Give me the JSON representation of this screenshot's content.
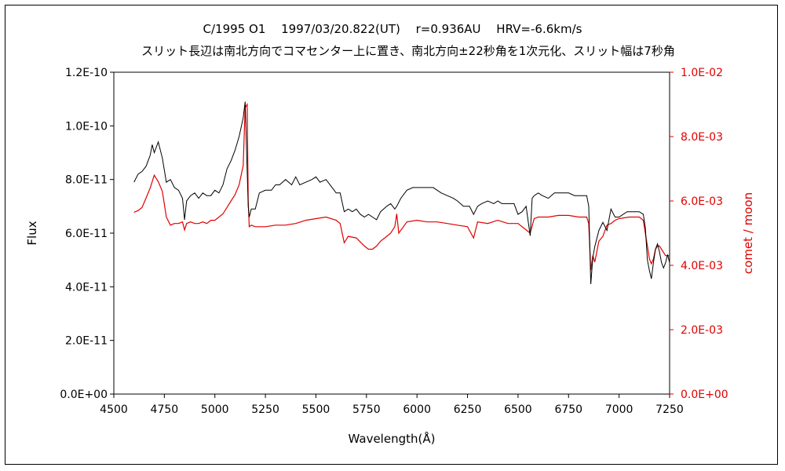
{
  "chart_data": {
    "type": "line",
    "title": "C/1995 O1　 1997/03/20.822(UT)　 r=0.936AU　 HRV=-6.6km/s",
    "subtitle": "スリット長辺は南北方向でコマセンター上に置き、南北方向±22秒角を1次元化、スリット幅は7秒角",
    "xlabel": "Wavelength(Å)",
    "ylabel": "Flux",
    "y2label": "comet / moon",
    "xlim": [
      4500,
      7250
    ],
    "ylim": [
      0,
      1.2e-10
    ],
    "y2lim": [
      0,
      0.01
    ],
    "x_ticks": [
      "4500",
      "4750",
      "5000",
      "5250",
      "5500",
      "5750",
      "6000",
      "6250",
      "6500",
      "6750",
      "7000",
      "7250"
    ],
    "y_ticks": [
      "0.0E+00",
      "2.0E-11",
      "4.0E-11",
      "6.0E-11",
      "8.0E-11",
      "1.0E-10",
      "1.2E-10"
    ],
    "y2_ticks": [
      "0.0E+00",
      "2.0E-03",
      "4.0E-03",
      "6.0E-03",
      "8.0E-03",
      "1.0E-02"
    ],
    "grid": false,
    "colors": {
      "flux": "#000000",
      "ratio": "#e00000",
      "axis_right": "#e00000"
    },
    "series": [
      {
        "axis": "left",
        "x": [
          4600,
          4620,
          4640,
          4660,
          4680,
          4690,
          4700,
          4720,
          4740,
          4760,
          4780,
          4800,
          4820,
          4840,
          4850,
          4860,
          4880,
          4900,
          4920,
          4940,
          4960,
          4980,
          5000,
          5020,
          5040,
          5060,
          5080,
          5100,
          5120,
          5140,
          5150,
          5160,
          5165,
          5170,
          5180,
          5200,
          5220,
          5250,
          5280,
          5300,
          5320,
          5350,
          5380,
          5400,
          5420,
          5450,
          5480,
          5500,
          5520,
          5550,
          5580,
          5600,
          5620,
          5640,
          5660,
          5680,
          5700,
          5720,
          5740,
          5760,
          5780,
          5800,
          5820,
          5850,
          5870,
          5890,
          5900,
          5920,
          5950,
          5980,
          6000,
          6020,
          6050,
          6080,
          6100,
          6120,
          6150,
          6180,
          6200,
          6230,
          6260,
          6280,
          6300,
          6320,
          6350,
          6380,
          6400,
          6420,
          6450,
          6480,
          6500,
          6520,
          6540,
          6560,
          6570,
          6580,
          6600,
          6620,
          6650,
          6680,
          6700,
          6720,
          6750,
          6780,
          6800,
          6820,
          6840,
          6850,
          6860,
          6870,
          6880,
          6900,
          6920,
          6940,
          6960,
          6980,
          7000,
          7020,
          7040,
          7060,
          7080,
          7100,
          7120,
          7130,
          7140,
          7150,
          7160,
          7170,
          7180,
          7190,
          7200,
          7210,
          7220,
          7230,
          7240,
          7250
        ],
        "y": [
          7.9e-11,
          8.2e-11,
          8.3e-11,
          8.5e-11,
          8.9e-11,
          9.3e-11,
          9e-11,
          9.4e-11,
          8.8e-11,
          7.9e-11,
          8e-11,
          7.7e-11,
          7.6e-11,
          7.3e-11,
          6.5e-11,
          7.2e-11,
          7.4e-11,
          7.5e-11,
          7.3e-11,
          7.5e-11,
          7.4e-11,
          7.4e-11,
          7.6e-11,
          7.5e-11,
          7.8e-11,
          8.4e-11,
          8.7e-11,
          9.1e-11,
          9.6e-11,
          1.03e-10,
          1.09e-10,
          8.3e-11,
          7e-11,
          6.6e-11,
          6.9e-11,
          6.9e-11,
          7.5e-11,
          7.6e-11,
          7.6e-11,
          7.8e-11,
          7.8e-11,
          8e-11,
          7.8e-11,
          8.1e-11,
          7.8e-11,
          7.9e-11,
          8e-11,
          8.1e-11,
          7.9e-11,
          8e-11,
          7.7e-11,
          7.5e-11,
          7.5e-11,
          6.8e-11,
          6.9e-11,
          6.8e-11,
          6.9e-11,
          6.7e-11,
          6.6e-11,
          6.7e-11,
          6.6e-11,
          6.5e-11,
          6.8e-11,
          7e-11,
          7.1e-11,
          6.9e-11,
          7e-11,
          7.3e-11,
          7.6e-11,
          7.7e-11,
          7.7e-11,
          7.7e-11,
          7.7e-11,
          7.7e-11,
          7.6e-11,
          7.5e-11,
          7.4e-11,
          7.3e-11,
          7.2e-11,
          7e-11,
          7e-11,
          6.7e-11,
          7e-11,
          7.1e-11,
          7.2e-11,
          7.1e-11,
          7.2e-11,
          7.1e-11,
          7.1e-11,
          7.1e-11,
          6.7e-11,
          6.8e-11,
          7e-11,
          5.9e-11,
          7.3e-11,
          7.4e-11,
          7.5e-11,
          7.4e-11,
          7.3e-11,
          7.5e-11,
          7.5e-11,
          7.5e-11,
          7.5e-11,
          7.4e-11,
          7.4e-11,
          7.4e-11,
          7.4e-11,
          7e-11,
          4.1e-11,
          5.1e-11,
          5.5e-11,
          6.1e-11,
          6.4e-11,
          6.1e-11,
          6.9e-11,
          6.6e-11,
          6.6e-11,
          6.7e-11,
          6.8e-11,
          6.8e-11,
          6.8e-11,
          6.8e-11,
          6.7e-11,
          6.2e-11,
          5e-11,
          4.6e-11,
          4.3e-11,
          4.9e-11,
          5.4e-11,
          5.6e-11,
          5.3e-11,
          4.9e-11,
          4.7e-11,
          4.9e-11,
          5.2e-11,
          4.9e-11
        ]
      },
      {
        "axis": "right",
        "x": [
          4600,
          4620,
          4640,
          4660,
          4680,
          4700,
          4720,
          4740,
          4760,
          4780,
          4800,
          4820,
          4840,
          4850,
          4860,
          4880,
          4900,
          4920,
          4940,
          4960,
          4980,
          5000,
          5020,
          5040,
          5060,
          5080,
          5100,
          5120,
          5140,
          5150,
          5160,
          5165,
          5170,
          5180,
          5200,
          5250,
          5300,
          5350,
          5400,
          5450,
          5500,
          5550,
          5600,
          5620,
          5640,
          5660,
          5700,
          5740,
          5760,
          5780,
          5800,
          5820,
          5850,
          5870,
          5890,
          5900,
          5910,
          5950,
          6000,
          6050,
          6100,
          6150,
          6200,
          6250,
          6280,
          6300,
          6350,
          6400,
          6450,
          6500,
          6540,
          6560,
          6580,
          6600,
          6650,
          6700,
          6750,
          6800,
          6840,
          6850,
          6860,
          6870,
          6880,
          6900,
          6920,
          6940,
          6960,
          6980,
          7000,
          7050,
          7100,
          7120,
          7140,
          7150,
          7160,
          7170,
          7180,
          7190,
          7200,
          7210,
          7220,
          7230,
          7250
        ],
        "y": [
          0.00565,
          0.0057,
          0.0058,
          0.0061,
          0.0064,
          0.0068,
          0.0066,
          0.0063,
          0.0055,
          0.00525,
          0.0053,
          0.0053,
          0.00535,
          0.0051,
          0.0053,
          0.00535,
          0.0053,
          0.0053,
          0.00535,
          0.0053,
          0.0054,
          0.0054,
          0.0055,
          0.0056,
          0.0058,
          0.006,
          0.0062,
          0.0065,
          0.0071,
          0.0089,
          0.009,
          0.006,
          0.0052,
          0.00525,
          0.0052,
          0.0052,
          0.00525,
          0.00525,
          0.0053,
          0.0054,
          0.00545,
          0.0055,
          0.0054,
          0.0053,
          0.0047,
          0.0049,
          0.00485,
          0.0046,
          0.0045,
          0.0045,
          0.0046,
          0.00475,
          0.0049,
          0.005,
          0.0052,
          0.0056,
          0.005,
          0.00535,
          0.0054,
          0.00535,
          0.00535,
          0.0053,
          0.00525,
          0.0052,
          0.00485,
          0.00535,
          0.0053,
          0.0054,
          0.0053,
          0.0053,
          0.0051,
          0.005,
          0.00545,
          0.0055,
          0.0055,
          0.00555,
          0.00555,
          0.0055,
          0.0055,
          0.0053,
          0.00385,
          0.0043,
          0.0041,
          0.00475,
          0.0049,
          0.00525,
          0.0053,
          0.0054,
          0.00545,
          0.0055,
          0.0055,
          0.0054,
          0.0046,
          0.0042,
          0.00405,
          0.0042,
          0.0045,
          0.0046,
          0.0046,
          0.0045,
          0.0044,
          0.0043,
          0.0043
        ]
      }
    ]
  }
}
